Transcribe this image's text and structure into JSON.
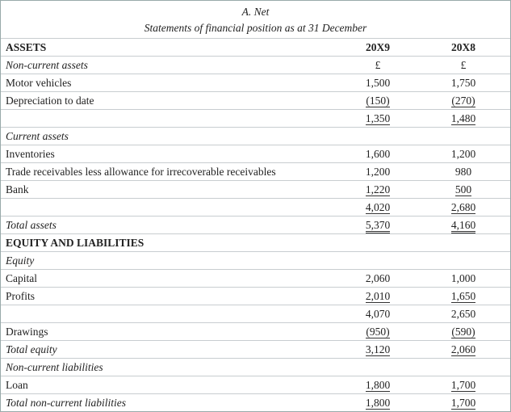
{
  "header": {
    "title": "A. Net",
    "subtitle": "Statements of financial position as at 31 December"
  },
  "table": {
    "rows": [
      {
        "label": "ASSETS",
        "style": "bold",
        "values": [
          "20X9",
          "20X8"
        ]
      },
      {
        "label": "Non-current assets",
        "style": "italic",
        "values": [
          "£",
          "£"
        ]
      },
      {
        "label": "Motor vehicles",
        "values": [
          "1,500",
          "1,750"
        ]
      },
      {
        "label": "Depreciation to date",
        "values": [
          "(150)",
          "(270)"
        ],
        "rule": "single"
      },
      {
        "values": [
          "1,350",
          "1,480"
        ],
        "rule": "single"
      },
      {
        "label": "Current assets",
        "style": "italic"
      },
      {
        "label": "Inventories",
        "values": [
          "1,600",
          "1,200"
        ]
      },
      {
        "label": "Trade receivables less allowance for irrecoverable receivables",
        "values": [
          "1,200",
          "980"
        ]
      },
      {
        "label": "Bank",
        "values": [
          "1,220",
          "500"
        ],
        "rule": "single"
      },
      {
        "values": [
          "4,020",
          "2,680"
        ],
        "rule": "single"
      },
      {
        "label": "Total assets",
        "style": "italic",
        "values": [
          "5,370",
          "4,160"
        ],
        "rule": "double"
      },
      {
        "label": "EQUITY AND LIABILITIES",
        "style": "bold"
      },
      {
        "label": "Equity",
        "style": "italic"
      },
      {
        "label": "Capital",
        "values": [
          "2,060",
          "1,000"
        ]
      },
      {
        "label": "Profits",
        "values": [
          "2,010",
          "1,650"
        ],
        "rule": "single"
      },
      {
        "values": [
          "4,070",
          "2,650"
        ]
      },
      {
        "label": "Drawings",
        "values": [
          "(950)",
          "(590)"
        ],
        "rule": "single"
      },
      {
        "label": "Total equity",
        "style": "italic",
        "values": [
          "3,120",
          "2,060"
        ],
        "rule": "single"
      },
      {
        "label": "Non-current liabilities",
        "style": "italic"
      },
      {
        "label": "Loan",
        "values": [
          "1,800",
          "1,700"
        ],
        "rule": "single"
      },
      {
        "label": "Total non-current liabilities",
        "style": "italic",
        "values": [
          "1,800",
          "1,700"
        ],
        "rule": "single"
      }
    ]
  }
}
